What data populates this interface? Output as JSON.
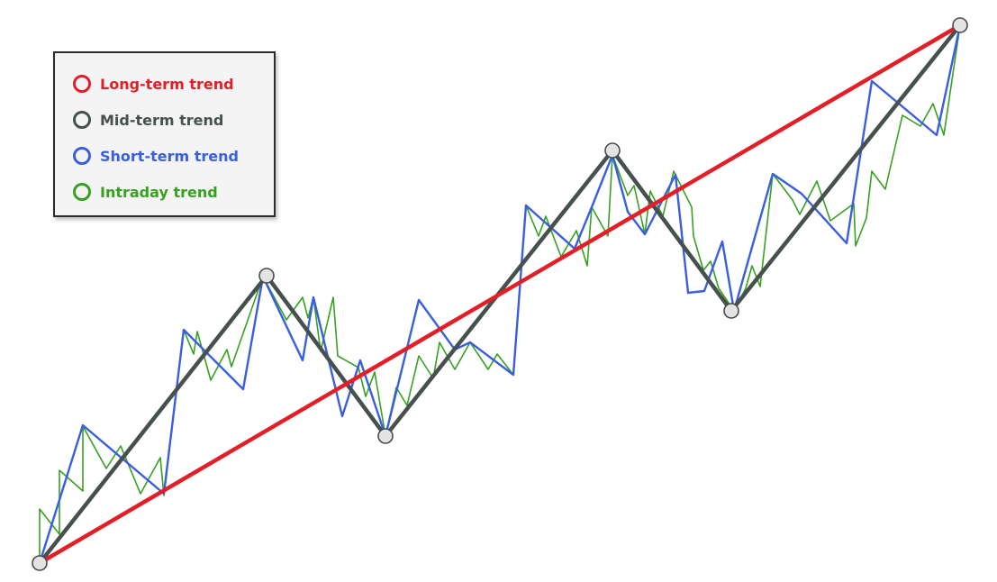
{
  "legend": {
    "items": [
      {
        "key": "long",
        "label": "Long-term trend",
        "color": "#e41e26"
      },
      {
        "key": "mid",
        "label": "Mid-term trend",
        "color": "#46504e"
      },
      {
        "key": "short",
        "label": "Short-term trend",
        "color": "#3a5ee0"
      },
      {
        "key": "intraday",
        "label": "Intraday trend",
        "color": "#36a11f"
      }
    ]
  },
  "colors": {
    "long": "#e41e26",
    "mid": "#46504e",
    "short": "#3a5ee0",
    "intraday": "#36a11f",
    "pivot_fill": "#e3e3e3",
    "pivot_stroke": "#4a4a4a"
  }
}
